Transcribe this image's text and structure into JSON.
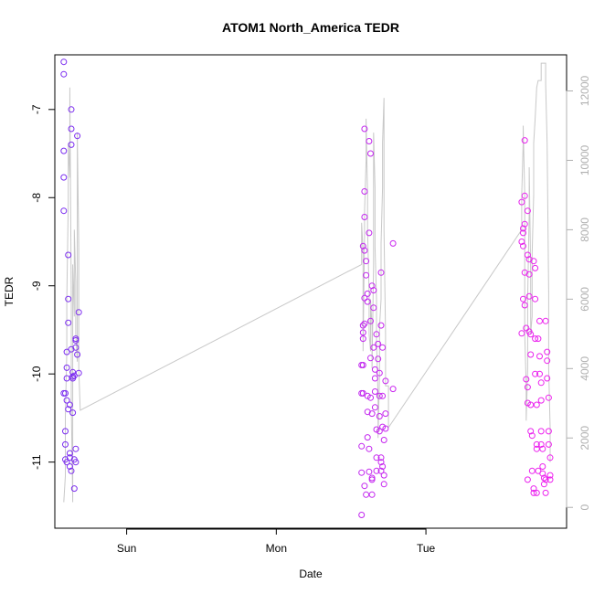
{
  "chart_data": {
    "type": "scatter",
    "title": "ATOM1 North_America TEDR",
    "xlabel": "Date",
    "ylabel": "TEDR",
    "x_ticks": [
      {
        "value": 1.0,
        "label": "Sun"
      },
      {
        "value": 2.0,
        "label": "Mon"
      },
      {
        "value": 3.0,
        "label": "Tue"
      }
    ],
    "xlim": [
      0.52,
      3.94
    ],
    "ylim": [
      -11.75,
      -6.38
    ],
    "y_ticks": [
      -11,
      -10,
      -9,
      -8,
      -7
    ],
    "y2lim": [
      -600,
      13040
    ],
    "y2_ticks": [
      0,
      2000,
      4000,
      6000,
      8000,
      10000,
      12000
    ],
    "colors": {
      "axis": "#000000",
      "secondary_axis": "#b0b0b0",
      "line": "#c8c8c8",
      "points_early": "#7a2cf0",
      "points_late": "#ee22ee"
    },
    "series": [
      {
        "values": [
          [
            0.58,
            -6.46
          ],
          [
            0.58,
            -6.6
          ],
          [
            0.58,
            -7.47
          ],
          [
            0.58,
            -7.77
          ],
          [
            0.58,
            -8.15
          ],
          [
            0.58,
            -10.22
          ],
          [
            0.59,
            -10.22
          ],
          [
            0.59,
            -10.65
          ],
          [
            0.59,
            -10.8
          ],
          [
            0.59,
            -10.97
          ],
          [
            0.6,
            -11.0
          ],
          [
            0.6,
            -10.3
          ],
          [
            0.6,
            -10.05
          ],
          [
            0.6,
            -9.93
          ],
          [
            0.6,
            -9.75
          ],
          [
            0.61,
            -9.15
          ],
          [
            0.61,
            -8.65
          ],
          [
            0.61,
            -9.42
          ],
          [
            0.61,
            -10.4
          ],
          [
            0.62,
            -10.35
          ],
          [
            0.62,
            -10.95
          ],
          [
            0.62,
            -11.05
          ],
          [
            0.62,
            -10.9
          ],
          [
            0.63,
            -11.1
          ],
          [
            0.63,
            -7.0
          ],
          [
            0.63,
            -7.22
          ],
          [
            0.63,
            -7.4
          ],
          [
            0.63,
            -9.72
          ],
          [
            0.64,
            -9.98
          ],
          [
            0.64,
            -10.05
          ],
          [
            0.64,
            -10.03
          ],
          [
            0.64,
            -10.44
          ],
          [
            0.65,
            -11.3
          ],
          [
            0.65,
            -10.97
          ],
          [
            0.65,
            -10.02
          ],
          [
            0.66,
            -9.7
          ],
          [
            0.66,
            -9.62
          ],
          [
            0.66,
            -9.6
          ],
          [
            0.66,
            -10.85
          ],
          [
            0.66,
            -11.0
          ],
          [
            0.67,
            -9.78
          ],
          [
            0.67,
            -7.3
          ],
          [
            0.68,
            -9.3
          ],
          [
            0.68,
            -9.99
          ],
          [
            2.57,
            -9.9
          ],
          [
            2.57,
            -10.22
          ],
          [
            2.57,
            -10.82
          ],
          [
            2.57,
            -11.12
          ],
          [
            2.57,
            -11.6
          ],
          [
            2.58,
            -9.45
          ],
          [
            2.58,
            -9.53
          ],
          [
            2.58,
            -9.9
          ],
          [
            2.58,
            -10.22
          ],
          [
            2.58,
            -9.6
          ],
          [
            2.58,
            -8.55
          ],
          [
            2.59,
            -8.6
          ],
          [
            2.59,
            -8.22
          ],
          [
            2.59,
            -7.93
          ],
          [
            2.59,
            -7.22
          ],
          [
            2.59,
            -9.14
          ],
          [
            2.59,
            -9.43
          ],
          [
            2.59,
            -11.27
          ],
          [
            2.6,
            -11.37
          ],
          [
            2.6,
            -8.72
          ],
          [
            2.6,
            -8.88
          ],
          [
            2.61,
            -9.09
          ],
          [
            2.61,
            -9.18
          ],
          [
            2.61,
            -10.25
          ],
          [
            2.61,
            -10.43
          ],
          [
            2.61,
            -10.72
          ],
          [
            2.62,
            -10.85
          ],
          [
            2.62,
            -11.11
          ],
          [
            2.62,
            -7.36
          ],
          [
            2.62,
            -8.4
          ],
          [
            2.63,
            -7.5
          ],
          [
            2.63,
            -9.4
          ],
          [
            2.63,
            -9.82
          ],
          [
            2.63,
            -10.27
          ],
          [
            2.64,
            -10.45
          ],
          [
            2.64,
            -11.2
          ],
          [
            2.64,
            -11.37
          ],
          [
            2.64,
            -11.18
          ],
          [
            2.64,
            -9.0
          ],
          [
            2.65,
            -9.05
          ],
          [
            2.65,
            -9.25
          ],
          [
            2.65,
            -9.7
          ],
          [
            2.66,
            -9.95
          ],
          [
            2.66,
            -10.05
          ],
          [
            2.66,
            -10.2
          ],
          [
            2.66,
            -10.38
          ],
          [
            2.67,
            -10.63
          ],
          [
            2.67,
            -11.1
          ],
          [
            2.67,
            -10.95
          ],
          [
            2.67,
            -9.55
          ],
          [
            2.68,
            -9.66
          ],
          [
            2.68,
            -9.83
          ],
          [
            2.69,
            -9.99
          ],
          [
            2.69,
            -10.25
          ],
          [
            2.69,
            -10.48
          ],
          [
            2.69,
            -10.65
          ],
          [
            2.7,
            -10.95
          ],
          [
            2.7,
            -11.1
          ],
          [
            2.7,
            -11.0
          ],
          [
            2.7,
            -9.45
          ],
          [
            2.7,
            -8.85
          ],
          [
            2.71,
            -9.7
          ],
          [
            2.71,
            -10.25
          ],
          [
            2.71,
            -10.6
          ],
          [
            2.71,
            -11.05
          ],
          [
            2.72,
            -11.25
          ],
          [
            2.72,
            -11.15
          ],
          [
            2.72,
            -10.75
          ],
          [
            2.73,
            -10.45
          ],
          [
            2.73,
            -10.08
          ],
          [
            2.73,
            -10.62
          ],
          [
            2.78,
            -8.52
          ],
          [
            2.78,
            -10.17
          ],
          [
            3.64,
            -9.54
          ],
          [
            3.64,
            -8.5
          ],
          [
            3.64,
            -8.05
          ],
          [
            3.65,
            -8.35
          ],
          [
            3.65,
            -9.15
          ],
          [
            3.65,
            -8.4
          ],
          [
            3.65,
            -8.55
          ],
          [
            3.66,
            -8.3
          ],
          [
            3.66,
            -7.98
          ],
          [
            3.66,
            -7.35
          ],
          [
            3.66,
            -8.85
          ],
          [
            3.66,
            -9.22
          ],
          [
            3.67,
            -9.48
          ],
          [
            3.67,
            -10.06
          ],
          [
            3.68,
            -10.15
          ],
          [
            3.68,
            -10.33
          ],
          [
            3.68,
            -11.2
          ],
          [
            3.68,
            -8.15
          ],
          [
            3.68,
            -8.65
          ],
          [
            3.69,
            -8.7
          ],
          [
            3.69,
            -8.87
          ],
          [
            3.69,
            -9.12
          ],
          [
            3.69,
            -9.52
          ],
          [
            3.7,
            -9.55
          ],
          [
            3.7,
            -9.78
          ],
          [
            3.7,
            -10.35
          ],
          [
            3.7,
            -10.65
          ],
          [
            3.71,
            -10.7
          ],
          [
            3.71,
            -11.1
          ],
          [
            3.72,
            -11.35
          ],
          [
            3.72,
            -11.3
          ],
          [
            3.72,
            -8.72
          ],
          [
            3.73,
            -8.8
          ],
          [
            3.73,
            -9.15
          ],
          [
            3.73,
            -9.6
          ],
          [
            3.73,
            -10.0
          ],
          [
            3.74,
            -10.35
          ],
          [
            3.74,
            -10.85
          ],
          [
            3.74,
            -10.8
          ],
          [
            3.74,
            -11.35
          ],
          [
            3.75,
            -11.1
          ],
          [
            3.75,
            -9.6
          ],
          [
            3.76,
            -9.4
          ],
          [
            3.76,
            -9.8
          ],
          [
            3.76,
            -10.0
          ],
          [
            3.77,
            -10.1
          ],
          [
            3.77,
            -10.3
          ],
          [
            3.77,
            -10.65
          ],
          [
            3.77,
            -10.8
          ],
          [
            3.78,
            -11.05
          ],
          [
            3.78,
            -11.13
          ],
          [
            3.78,
            -10.85
          ],
          [
            3.79,
            -11.25
          ],
          [
            3.79,
            -11.18
          ],
          [
            3.8,
            -11.35
          ],
          [
            3.8,
            -11.2
          ],
          [
            3.8,
            -9.4
          ],
          [
            3.81,
            -9.75
          ],
          [
            3.81,
            -9.85
          ],
          [
            3.81,
            -10.05
          ],
          [
            3.82,
            -10.27
          ],
          [
            3.82,
            -10.65
          ],
          [
            3.82,
            -10.8
          ],
          [
            3.83,
            -10.95
          ],
          [
            3.83,
            -11.2
          ],
          [
            3.83,
            -11.15
          ]
        ]
      },
      {
        "axis": "right",
        "type": "line",
        "values": [
          [
            0.58,
            150
          ],
          [
            0.59,
            900
          ],
          [
            0.59,
            2600
          ],
          [
            0.6,
            4500
          ],
          [
            0.6,
            6000
          ],
          [
            0.61,
            8800
          ],
          [
            0.61,
            10500
          ],
          [
            0.62,
            9500
          ],
          [
            0.62,
            12100
          ],
          [
            0.63,
            6000
          ],
          [
            0.63,
            3000
          ],
          [
            0.64,
            150
          ],
          [
            0.64,
            7000
          ],
          [
            0.65,
            5500
          ],
          [
            0.65,
            8000
          ],
          [
            0.66,
            6500
          ],
          [
            0.66,
            5000
          ],
          [
            0.67,
            4200
          ],
          [
            0.67,
            10800
          ],
          [
            0.68,
            7500
          ],
          [
            0.68,
            4000
          ],
          [
            0.69,
            2800
          ],
          [
            2.57,
            7000
          ],
          [
            2.57,
            8200
          ],
          [
            2.58,
            7400
          ],
          [
            2.58,
            6200
          ],
          [
            2.58,
            4500
          ],
          [
            2.59,
            7800
          ],
          [
            2.59,
            8500
          ],
          [
            2.6,
            10000
          ],
          [
            2.6,
            11200
          ],
          [
            2.61,
            9000
          ],
          [
            2.61,
            8000
          ],
          [
            2.62,
            6200
          ],
          [
            2.62,
            5000
          ],
          [
            2.63,
            4500
          ],
          [
            2.63,
            6000
          ],
          [
            2.64,
            5200
          ],
          [
            2.64,
            4000
          ],
          [
            2.65,
            7000
          ],
          [
            2.65,
            10800
          ],
          [
            2.66,
            9200
          ],
          [
            2.66,
            7500
          ],
          [
            2.67,
            6000
          ],
          [
            2.67,
            4800
          ],
          [
            2.68,
            3200
          ],
          [
            2.68,
            2000
          ],
          [
            2.69,
            3800
          ],
          [
            2.69,
            5200
          ],
          [
            2.7,
            6000
          ],
          [
            2.7,
            7600
          ],
          [
            2.71,
            9200
          ],
          [
            2.71,
            10500
          ],
          [
            2.72,
            11800
          ],
          [
            2.72,
            8000
          ],
          [
            2.73,
            5000
          ],
          [
            2.73,
            3500
          ],
          [
            2.75,
            3500
          ],
          [
            2.75,
            2300
          ],
          [
            3.64,
            8000
          ],
          [
            3.64,
            9000
          ],
          [
            3.65,
            10500
          ],
          [
            3.65,
            11000
          ],
          [
            3.66,
            9000
          ],
          [
            3.66,
            7000
          ],
          [
            3.66,
            5000
          ],
          [
            3.67,
            3500
          ],
          [
            3.67,
            2500
          ],
          [
            3.68,
            4000
          ],
          [
            3.68,
            6000
          ],
          [
            3.69,
            8500
          ],
          [
            3.69,
            9800
          ],
          [
            3.7,
            6800
          ],
          [
            3.7,
            5000
          ],
          [
            3.71,
            5500
          ],
          [
            3.71,
            7300
          ],
          [
            3.72,
            9000
          ],
          [
            3.72,
            10500
          ],
          [
            3.73,
            11200
          ],
          [
            3.74,
            12100
          ],
          [
            3.75,
            12300
          ],
          [
            3.77,
            12300
          ],
          [
            3.77,
            12800
          ],
          [
            3.8,
            12800
          ],
          [
            3.8,
            12200
          ],
          [
            3.81,
            10500
          ],
          [
            3.82,
            6200
          ],
          [
            3.82,
            4000
          ],
          [
            3.83,
            2300
          ],
          [
            3.83,
            1300
          ]
        ]
      }
    ]
  }
}
